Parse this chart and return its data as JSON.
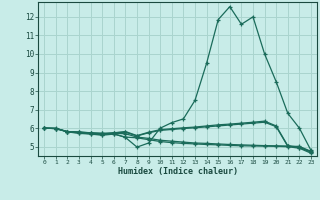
{
  "xlabel": "Humidex (Indice chaleur)",
  "bg_color": "#c8ece8",
  "line_color": "#1a6b5a",
  "grid_color": "#aad4ce",
  "xlim": [
    -0.5,
    23.5
  ],
  "ylim": [
    4.5,
    12.8
  ],
  "xticks": [
    0,
    1,
    2,
    3,
    4,
    5,
    6,
    7,
    8,
    9,
    10,
    11,
    12,
    13,
    14,
    15,
    16,
    17,
    18,
    19,
    20,
    21,
    22,
    23
  ],
  "yticks": [
    5,
    6,
    7,
    8,
    9,
    10,
    11,
    12
  ],
  "lines": [
    [
      6.0,
      6.0,
      5.8,
      5.8,
      5.75,
      5.72,
      5.7,
      5.5,
      4.98,
      5.2,
      6.0,
      6.3,
      6.5,
      7.5,
      9.5,
      11.85,
      12.55,
      11.6,
      12.0,
      10.0,
      8.5,
      6.8,
      6.0,
      4.8
    ],
    [
      6.0,
      5.98,
      5.82,
      5.78,
      5.75,
      5.72,
      5.75,
      5.82,
      5.6,
      5.78,
      5.92,
      5.97,
      6.02,
      6.06,
      6.12,
      6.18,
      6.22,
      6.27,
      6.32,
      6.38,
      6.12,
      5.05,
      4.98,
      4.72
    ],
    [
      6.0,
      5.98,
      5.82,
      5.78,
      5.72,
      5.68,
      5.75,
      5.78,
      5.58,
      5.75,
      5.88,
      5.93,
      5.98,
      6.02,
      6.07,
      6.12,
      6.17,
      6.22,
      6.27,
      6.32,
      6.08,
      5.02,
      5.02,
      4.75
    ],
    [
      6.0,
      5.98,
      5.8,
      5.75,
      5.7,
      5.65,
      5.72,
      5.7,
      5.52,
      5.45,
      5.35,
      5.3,
      5.25,
      5.2,
      5.18,
      5.15,
      5.12,
      5.1,
      5.08,
      5.06,
      5.05,
      5.04,
      4.95,
      4.72
    ],
    [
      6.0,
      5.98,
      5.8,
      5.72,
      5.68,
      5.62,
      5.68,
      5.52,
      5.48,
      5.38,
      5.28,
      5.22,
      5.18,
      5.15,
      5.12,
      5.1,
      5.07,
      5.05,
      5.04,
      5.03,
      5.02,
      5.0,
      4.92,
      4.65
    ]
  ]
}
